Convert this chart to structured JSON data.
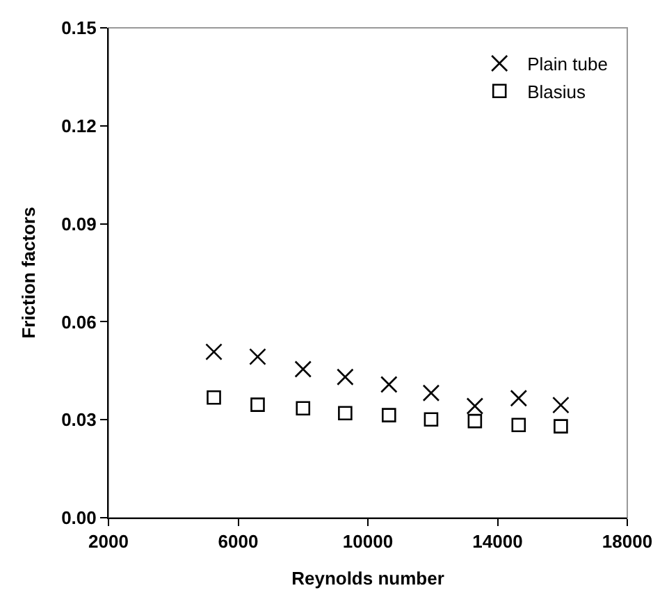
{
  "chart_data": {
    "type": "scatter",
    "xlabel": "Reynolds number",
    "ylabel": "Friction factors",
    "x": [
      5250,
      6600,
      8000,
      9300,
      10650,
      11950,
      13300,
      14650,
      15950
    ],
    "series": [
      {
        "name": "Plain tube",
        "color": "#000000",
        "marker": "cross",
        "values": [
          0.0508,
          0.0493,
          0.0455,
          0.0431,
          0.0408,
          0.0382,
          0.0342,
          0.0366,
          0.0345
        ]
      },
      {
        "name": "Blasius",
        "color": "#000000",
        "marker": "square",
        "values": [
          0.0368,
          0.0346,
          0.0335,
          0.032,
          0.0314,
          0.0301,
          0.0296,
          0.0284,
          0.028
        ]
      }
    ],
    "xlim": [
      2000,
      18000
    ],
    "xticks": [
      2000,
      6000,
      10000,
      14000,
      18000
    ],
    "ylim": [
      0,
      0.15
    ],
    "yticks": [
      {
        "value": 0,
        "label": "0.00"
      },
      0.03,
      0.06,
      0.09,
      0.12,
      0.15
    ],
    "grid": false,
    "legend": "top right"
  }
}
